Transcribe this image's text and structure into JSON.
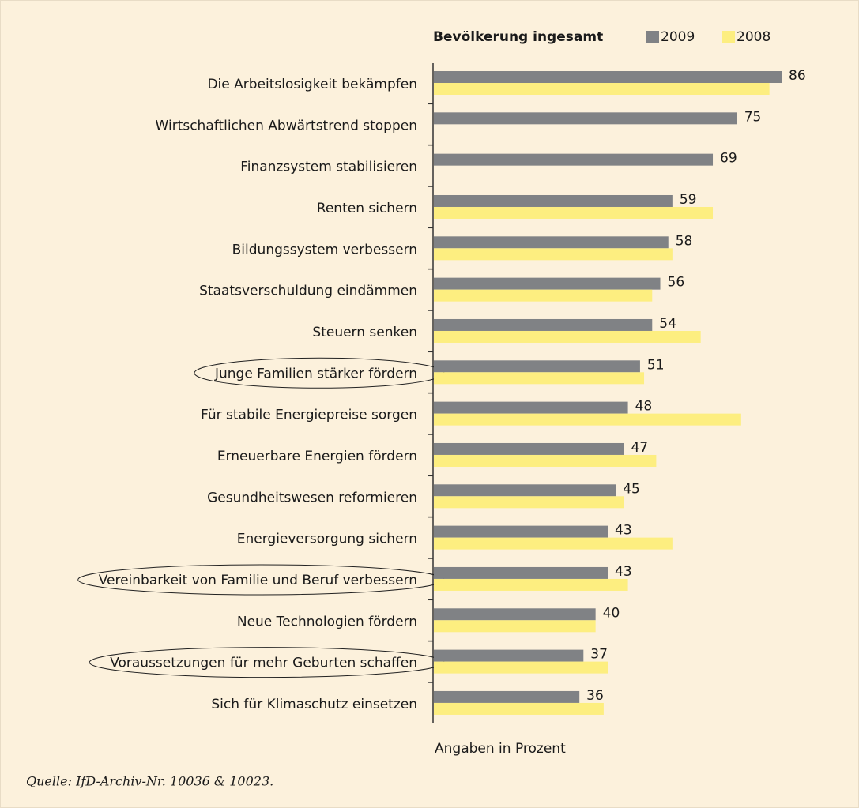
{
  "chart_data": {
    "type": "bar",
    "orientation": "horizontal",
    "legend_title": "Bevölkerung ingesamt",
    "categories": [
      "Die Arbeitslosigkeit bekämpfen",
      "Wirtschaftlichen Abwärtstrend stoppen",
      "Finanzsystem stabilisieren",
      "Renten sichern",
      "Bildungssystem verbessern",
      "Staatsverschuldung eindämmen",
      "Steuern senken",
      "Junge Familien stärker fördern",
      "Für stabile Energiepreise sorgen",
      "Erneuerbare Energien fördern",
      "Gesundheitswesen reformieren",
      "Energieversorgung sichern",
      "Vereinbarkeit von Familie und Beruf verbessern",
      "Neue Technologien fördern",
      "Voraussetzungen für mehr Geburten schaffen",
      "Sich für Klimaschutz einsetzen"
    ],
    "series": [
      {
        "name": "2009",
        "color": "#808285",
        "values": [
          86,
          75,
          69,
          59,
          58,
          56,
          54,
          51,
          48,
          47,
          45,
          43,
          43,
          40,
          37,
          36
        ],
        "labels": true
      },
      {
        "name": "2008",
        "color": "#fdee80",
        "values": [
          83,
          null,
          null,
          69,
          59,
          54,
          66,
          52,
          76,
          55,
          47,
          59,
          48,
          40,
          43,
          42
        ],
        "labels": false
      }
    ],
    "highlighted": [
      7,
      12,
      14
    ],
    "note": "Angaben in Prozent",
    "source": "Quelle: IfD-Archiv-Nr. 10036 & 10023."
  }
}
